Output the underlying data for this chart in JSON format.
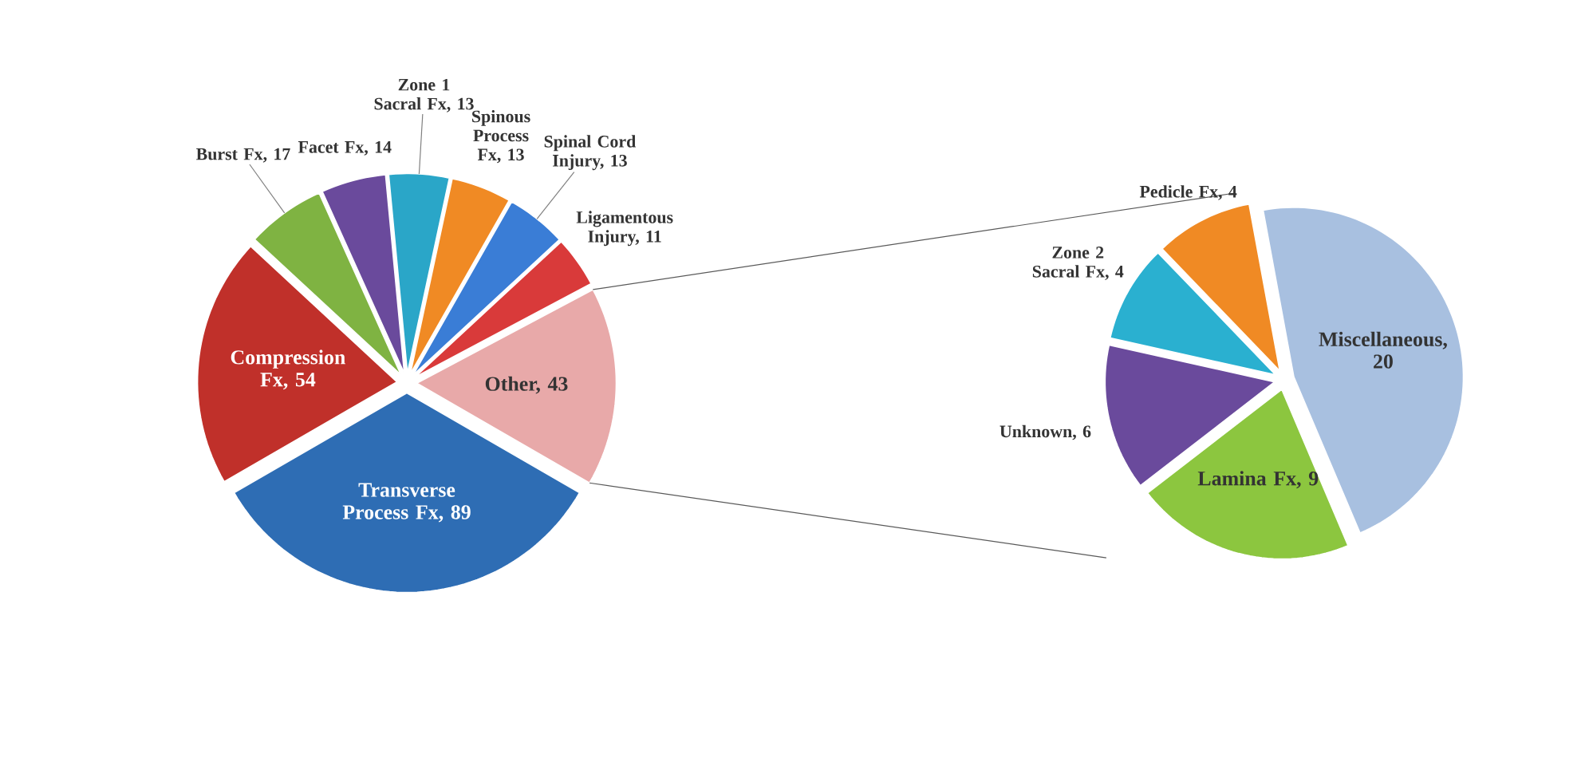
{
  "chart_data": [
    {
      "type": "pie",
      "categories": [
        "Transverse Process Fx, 89",
        "Other, 43",
        "Ligamentous Injury, 11",
        "Spinal Cord Injury, 13",
        "Spinous Process Fx, 13",
        "Zone 1 Sacral Fx, 13",
        "Facet Fx, 14",
        "Burst Fx, 17",
        "Compression Fx, 54"
      ],
      "values": [
        89,
        43,
        11,
        13,
        13,
        13,
        14,
        17,
        54
      ],
      "colors": [
        "#2e6db4",
        "#e8a9a9",
        "#d93a3a",
        "#3a7dd6",
        "#f08a24",
        "#2aa6c8",
        "#6a4a9c",
        "#7fb342",
        "#c0302a"
      ]
    },
    {
      "type": "pie",
      "categories": [
        "Miscellaneous, 20",
        "Pedicle Fx, 4",
        "Zone 2 Sacral Fx, 4",
        "Unknown, 6",
        "Lamina Fx, 9"
      ],
      "values": [
        20,
        4,
        4,
        6,
        9
      ],
      "colors": [
        "#a8c0e0",
        "#f08a24",
        "#2ab0d0",
        "#6a4a9c",
        "#8cc63f"
      ]
    }
  ]
}
